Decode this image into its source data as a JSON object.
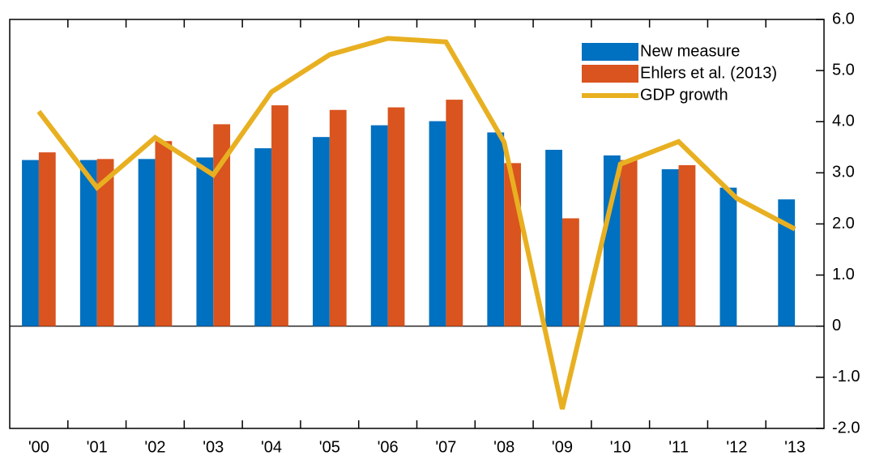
{
  "chart_data": {
    "type": "bar",
    "categories": [
      "'00",
      "'01",
      "'02",
      "'03",
      "'04",
      "'05",
      "'06",
      "'07",
      "'08",
      "'09",
      "'10",
      "'11",
      "'12",
      "'13"
    ],
    "series": [
      {
        "name": "New measure",
        "color": "#0070c0",
        "type": "bar",
        "values": [
          3.25,
          3.25,
          3.27,
          3.3,
          3.48,
          3.7,
          3.93,
          4.01,
          3.79,
          3.45,
          3.34,
          3.07,
          2.71,
          2.48
        ]
      },
      {
        "name": "Ehlers et al. (2013)",
        "color": "#d9541e",
        "type": "bar",
        "values": [
          3.4,
          3.27,
          3.62,
          3.95,
          4.32,
          4.23,
          4.28,
          4.43,
          3.19,
          2.11,
          3.25,
          3.15,
          null,
          null
        ]
      },
      {
        "name": "GDP growth",
        "color": "#e8b021",
        "type": "line",
        "values": [
          4.2,
          2.71,
          3.69,
          2.96,
          4.58,
          5.31,
          5.63,
          5.56,
          3.6,
          -1.62,
          3.17,
          3.61,
          2.5,
          1.9
        ]
      }
    ],
    "ylim": [
      -2,
      6
    ],
    "yticks": [
      {
        "value": -2,
        "label": "-2.0"
      },
      {
        "value": -1,
        "label": "-1.0"
      },
      0,
      {
        "value": 1,
        "label": "1.0"
      },
      {
        "value": 2,
        "label": "2.0"
      },
      {
        "value": 3,
        "label": "3.0"
      },
      {
        "value": 4,
        "label": "4.0"
      },
      {
        "value": 5,
        "label": "5.0"
      },
      {
        "value": 6,
        "label": "6.0"
      }
    ],
    "y_axis_side": "right",
    "legend": "top-right"
  }
}
